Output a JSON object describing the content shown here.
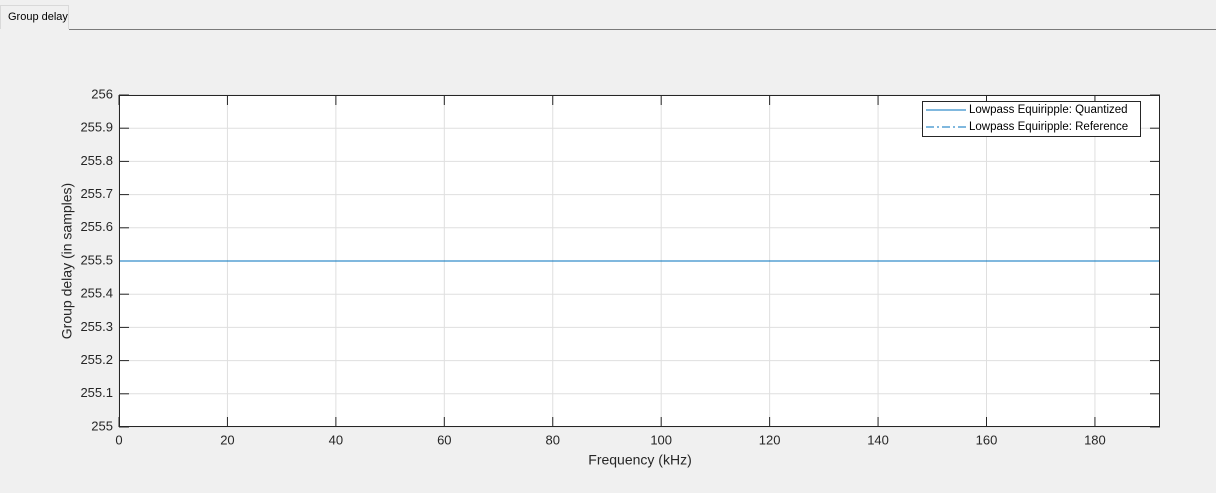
{
  "tab": "Group delay",
  "chart_data": {
    "type": "line",
    "x_label": "Frequency (kHz)",
    "y_label": "Group delay (in samples)",
    "x": [
      0,
      192
    ],
    "series": [
      {
        "name": "Lowpass Equiripple: Quantized",
        "color": "#0072bd",
        "style": "solid",
        "values": [
          255.5,
          255.5
        ]
      },
      {
        "name": "Lowpass Equiripple: Reference",
        "color": "#0072bd",
        "style": "dashdot",
        "values": [
          255.5,
          255.5
        ]
      }
    ],
    "xlim": [
      0,
      192
    ],
    "xticks": [
      0,
      20,
      40,
      60,
      80,
      100,
      120,
      140,
      160,
      180
    ],
    "ylim": [
      255,
      256
    ],
    "yticks": [
      255,
      255.1,
      255.2,
      255.3,
      255.4,
      255.5,
      255.6,
      255.7,
      255.8,
      255.9,
      256
    ],
    "grid": true,
    "legend": "top-right"
  }
}
